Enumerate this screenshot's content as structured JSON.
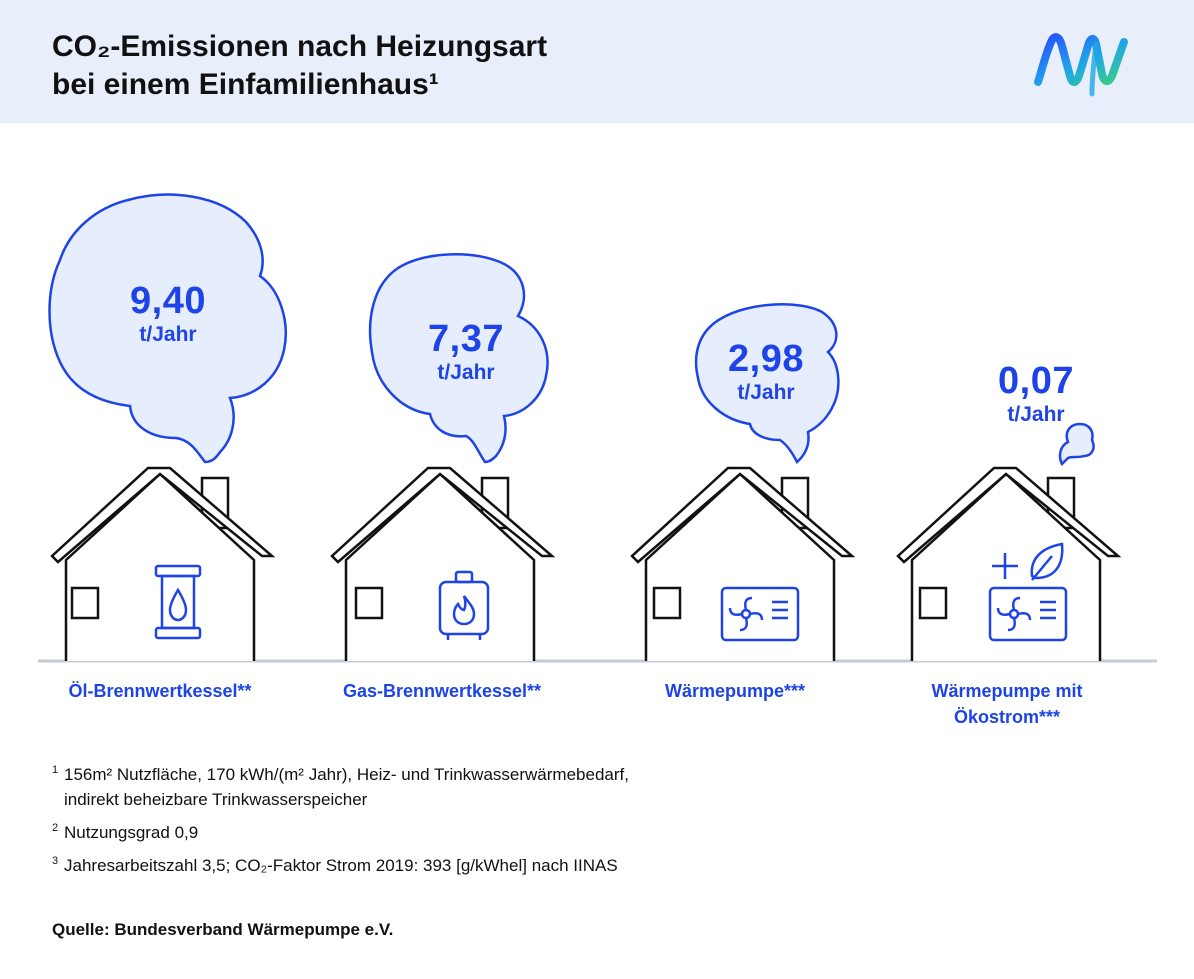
{
  "header": {
    "title_line1": "CO₂-Emissionen nach Heizungsart",
    "title_line2": "bei einem Einfamilienhaus¹"
  },
  "colors": {
    "accent": "#1e44e8",
    "cloud_fill": "#e6edfc",
    "header_bg": "#e9eefb",
    "ground_line": "#c5ccd8"
  },
  "items": [
    {
      "value": "9,40",
      "unit": "t/Jahr",
      "label_line1": "Öl-Brennwertkessel**",
      "label_line2": "",
      "icon": "oil-barrel-icon"
    },
    {
      "value": "7,37",
      "unit": "t/Jahr",
      "label_line1": "Gas-Brennwertkessel**",
      "label_line2": "",
      "icon": "gas-boiler-icon"
    },
    {
      "value": "2,98",
      "unit": "t/Jahr",
      "label_line1": "Wärmepumpe***",
      "label_line2": "",
      "icon": "heat-pump-icon"
    },
    {
      "value": "0,07",
      "unit": "t/Jahr",
      "label_line1": "Wärmepumpe mit",
      "label_line2": "Ökostrom***",
      "icon": "heat-pump-leaf-icon"
    }
  ],
  "footnotes": [
    {
      "mark": "1",
      "line1": "156m² Nutzfläche, 170 kWh/(m² Jahr), Heiz- und Trinkwasserwärmebedarf,",
      "line2": "indirekt beheizbare Trinkwasserspeicher"
    },
    {
      "mark": "2",
      "line1": "Nutzungsgrad 0,9",
      "line2": ""
    },
    {
      "mark": "3",
      "line1": "Jahresarbeitszahl 3,5; CO₂-Faktor Strom 2019: 393 [g/kWhel] nach IINAS",
      "line2": ""
    }
  ],
  "source": "Quelle: Bundesverband Wärmepumpe e.V."
}
